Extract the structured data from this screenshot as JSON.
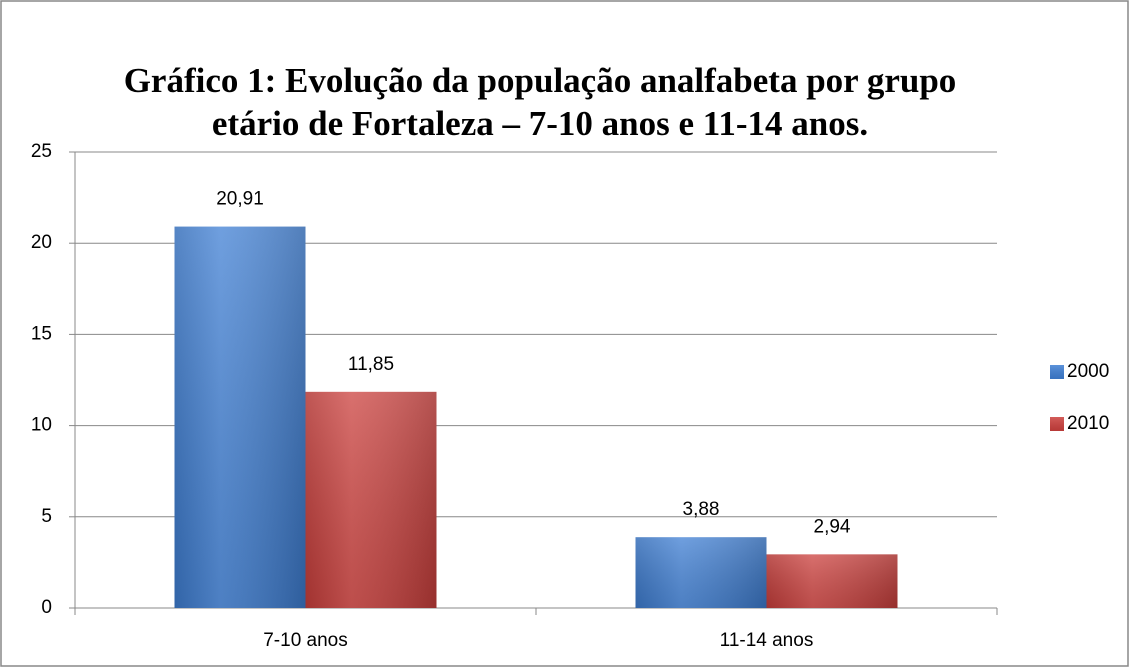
{
  "chart_data": {
    "type": "bar",
    "title": [
      "Gráfico 1: Evolução da população analfabeta por grupo",
      "etário de Fortaleza – 7-10 anos e 11-14 anos."
    ],
    "categories": [
      "7-10 anos",
      "11-14 anos"
    ],
    "series": [
      {
        "name": "2000",
        "color": "#3f7fd4",
        "values": [
          20.91,
          3.88
        ],
        "value_labels": [
          "20,91",
          "3,88"
        ]
      },
      {
        "name": "2010",
        "color": "#cc403d",
        "values": [
          11.85,
          2.94
        ],
        "value_labels": [
          "11,85",
          "2,94"
        ]
      }
    ],
    "ylim": [
      0,
      25
    ],
    "yticks": [
      0,
      5,
      10,
      15,
      20,
      25
    ],
    "grid": true,
    "legend": "right"
  }
}
